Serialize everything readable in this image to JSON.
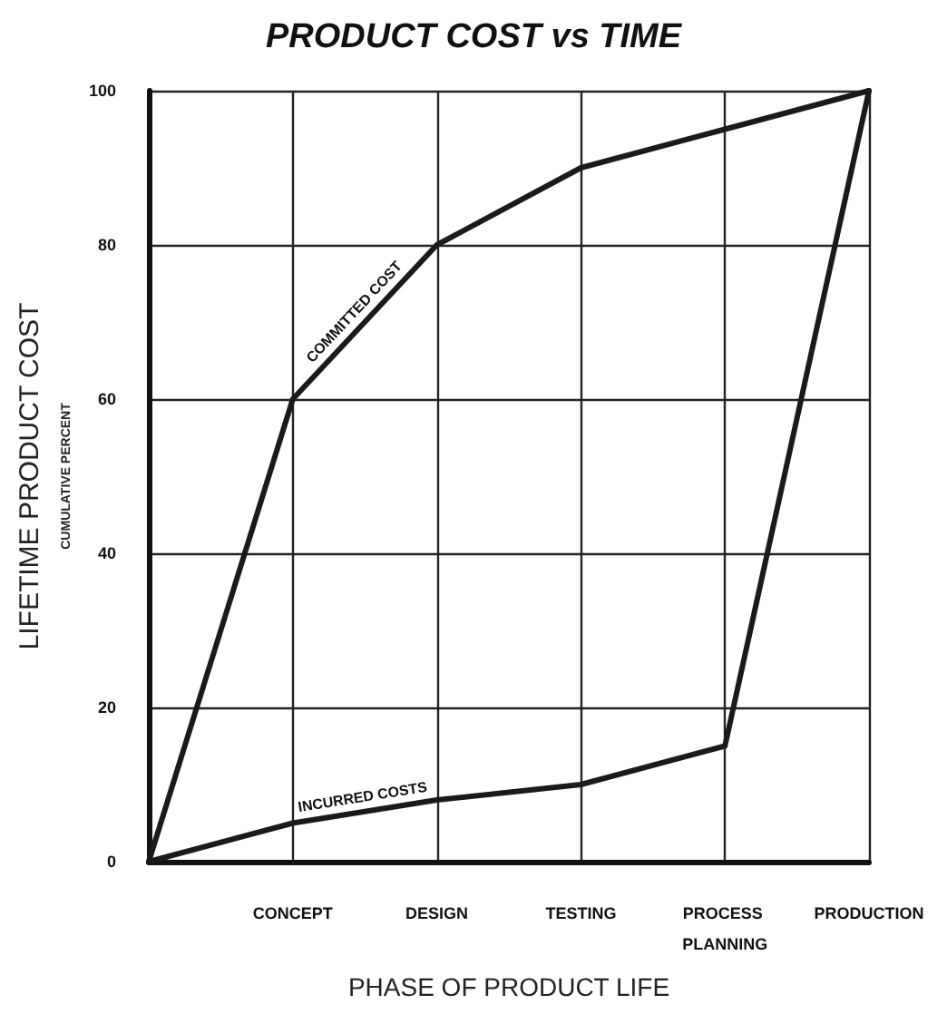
{
  "chart_data": {
    "type": "line",
    "title": "PRODUCT COST vs TIME",
    "xlabel": "PHASE OF PRODUCT LIFE",
    "ylabel": "LIFETIME PRODUCT COST",
    "categories": [
      null,
      "CONCEPT",
      "DESIGN",
      "TESTING",
      "PROCESS PLANNING",
      "PRODUCTION"
    ],
    "series": [
      {
        "color": "#1a1a1a",
        "values": [
          0,
          60,
          80,
          90,
          95,
          100
        ]
      },
      {
        "color": "#1a1a1a",
        "values": [
          0,
          5,
          8,
          10,
          15,
          100
        ]
      }
    ],
    "ylim": [
      0,
      100
    ],
    "yticks": [
      0,
      20,
      40,
      60,
      80,
      100
    ],
    "grid": true,
    "marker": "none",
    "line_style": "solid",
    "annotations": [
      "COMMITTED COST",
      "INCURRED COSTS",
      "CUMULATIVE PERCENT"
    ]
  }
}
